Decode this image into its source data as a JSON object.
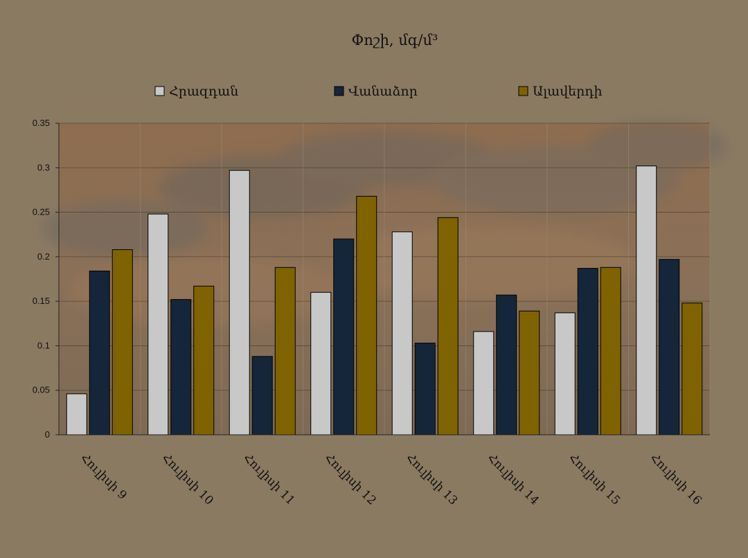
{
  "chart_data": {
    "type": "bar",
    "title": "Փոշի, մգ/մ³",
    "categories": [
      "Հուլիսի 9",
      "Հուլիսի 10",
      "Հուլիսի 11",
      "Հուլիսի 12",
      "Հուլիսի 13",
      "Հուլիսի 14",
      "Հուլիսի 15",
      "Հուլիսի 16"
    ],
    "series": [
      {
        "name": "Հրազդան",
        "color": "#c8c8c8",
        "values": [
          0.046,
          0.248,
          0.297,
          0.16,
          0.228,
          0.116,
          0.137,
          0.302
        ]
      },
      {
        "name": "Վանաձոր",
        "color": "#15263a",
        "values": [
          0.184,
          0.152,
          0.088,
          0.22,
          0.103,
          0.157,
          0.187,
          0.197
        ]
      },
      {
        "name": "Ալավերդի",
        "color": "#7f6300",
        "values": [
          0.208,
          0.167,
          0.188,
          0.268,
          0.244,
          0.139,
          0.188,
          0.148
        ]
      }
    ],
    "yticks": [
      "0",
      "0.05",
      "0.1",
      "0.15",
      "0.2",
      "0.25",
      "0.3",
      "0.35"
    ],
    "ylim": [
      0,
      0.35
    ],
    "grid": true,
    "legend": "top"
  }
}
